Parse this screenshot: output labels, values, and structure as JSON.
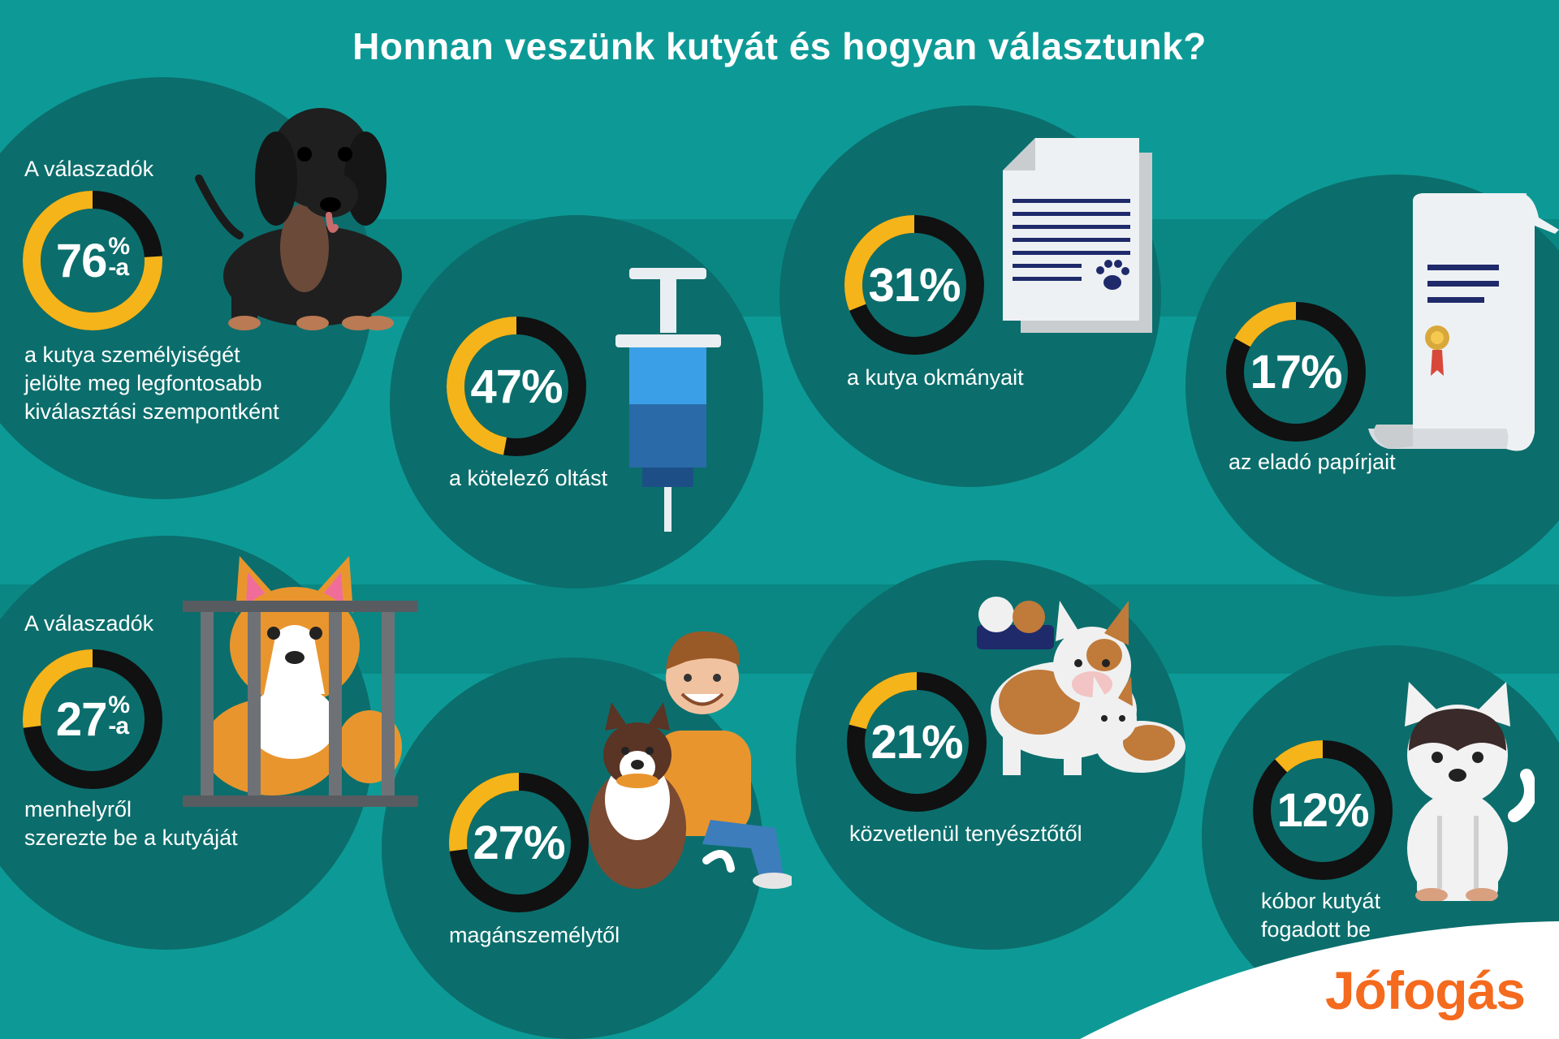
{
  "title": "Honnan veszünk kutyát és hogyan választunk?",
  "colors": {
    "background": "#0d9a96",
    "circle": "#0b6e6c",
    "ring_fill": "#f5b41a",
    "ring_track": "#111111",
    "logo": "#f46a1e"
  },
  "chart_data": [
    {
      "type": "donut",
      "label_above": "A válaszadók",
      "value": 76,
      "display": "76%",
      "suffix": "-a",
      "text": [
        "a kutya személyiségét",
        "jelölte meg legfontosabb",
        "kiválasztási szempontként"
      ],
      "icon": "dachshund-icon"
    },
    {
      "type": "donut",
      "value": 47,
      "display": "47%",
      "text": [
        "a kötelező oltást"
      ],
      "icon": "syringe-icon"
    },
    {
      "type": "donut",
      "value": 31,
      "display": "31%",
      "text": [
        "a kutya okmányait"
      ],
      "icon": "document-paw-icon"
    },
    {
      "type": "donut",
      "value": 17,
      "display": "17%",
      "text": [
        "az eladó papírjait"
      ],
      "icon": "certificate-scroll-icon"
    },
    {
      "type": "donut",
      "label_above": "A válaszadók",
      "value": 27,
      "display": "27%",
      "suffix": "-a",
      "text": [
        "menhelyről",
        "szerezte be a kutyáját"
      ],
      "icon": "caged-corgi-icon"
    },
    {
      "type": "donut",
      "value": 27,
      "display": "27%",
      "text": [
        "magánszemélytől"
      ],
      "icon": "man-with-dog-icon"
    },
    {
      "type": "donut",
      "value": 21,
      "display": "21%",
      "text": [
        "közvetlenül tenyésztőtől"
      ],
      "icon": "breeder-dogs-icon"
    },
    {
      "type": "donut",
      "value": 12,
      "display": "12%",
      "text": [
        "kóbor kutyát",
        "fogadott be"
      ],
      "icon": "stray-dog-icon"
    }
  ],
  "logo": "Jófogás"
}
